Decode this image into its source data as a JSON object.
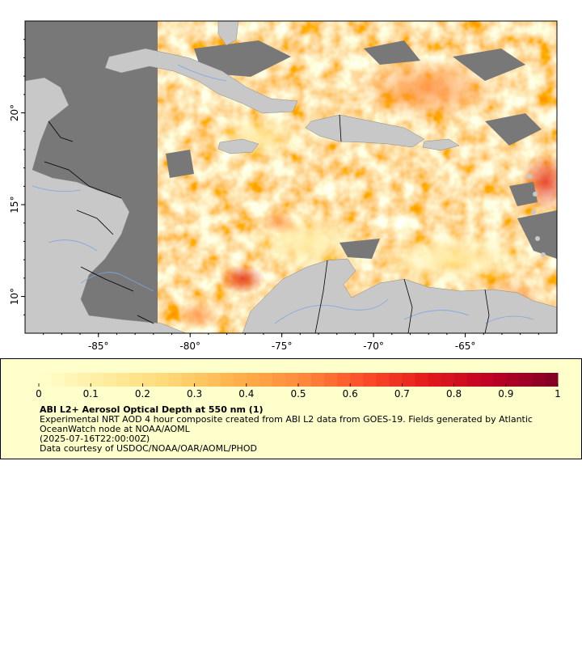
{
  "map": {
    "x_axis_ticks": [
      "-85°",
      "-80°",
      "-75°",
      "-70°",
      "-65°"
    ],
    "x_axis_values": [
      -85,
      -80,
      -75,
      -70,
      -65
    ],
    "y_axis_ticks": [
      "20°",
      "15°",
      "10°"
    ],
    "y_axis_values": [
      20,
      15,
      10
    ],
    "lon_range": [
      -89,
      -60
    ],
    "lat_range": [
      8,
      25
    ],
    "colors": {
      "land": "#c8c8c8",
      "no_data": "#787878",
      "rivers": "#7aa8e0",
      "borders": "#000000"
    }
  },
  "legend": {
    "colorbar_ticks": [
      "0",
      "0.1",
      "0.2",
      "0.3",
      "0.4",
      "0.5",
      "0.6",
      "0.7",
      "0.8",
      "0.9",
      "1"
    ],
    "colorbar_range": [
      0,
      1
    ],
    "colormap": [
      "#ffffcc",
      "#ffeda0",
      "#fed976",
      "#feb24c",
      "#fd8d3c",
      "#fc4e2a",
      "#e31a1c",
      "#bd0026",
      "#800026"
    ],
    "title": "ABI L2+ Aerosol Optical Depth at 550 nm (1)",
    "description": "Experimental NRT AOD 4 hour composite created from ABI L2 data from GOES-19. Fields generated by Atlantic OceanWatch node at NOAA/AOML",
    "timestamp": "(2025-07-16T22:00:00Z)",
    "credit": "Data courtesy of USDOC/NOAA/OAR/AOML/PHOD"
  }
}
